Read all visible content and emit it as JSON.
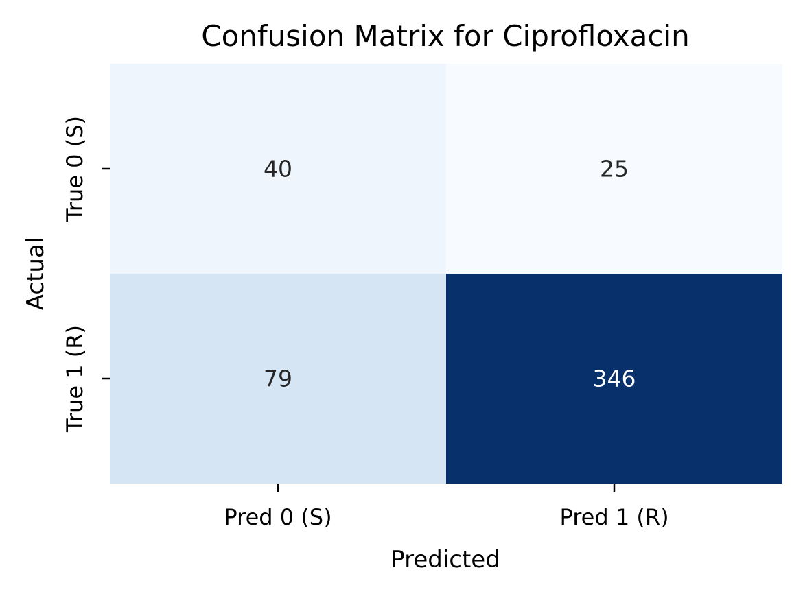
{
  "chart_data": {
    "type": "heatmap",
    "title": "Confusion Matrix for Ciprofloxacin",
    "xlabel": "Predicted",
    "ylabel": "Actual",
    "x_categories": [
      "Pred 0 (S)",
      "Pred 1 (R)"
    ],
    "y_categories": [
      "True 0 (S)",
      "True 1 (R)"
    ],
    "values": [
      [
        40,
        25
      ],
      [
        79,
        346
      ]
    ],
    "colormap": "Blues",
    "colorbar": false,
    "grid": false
  }
}
